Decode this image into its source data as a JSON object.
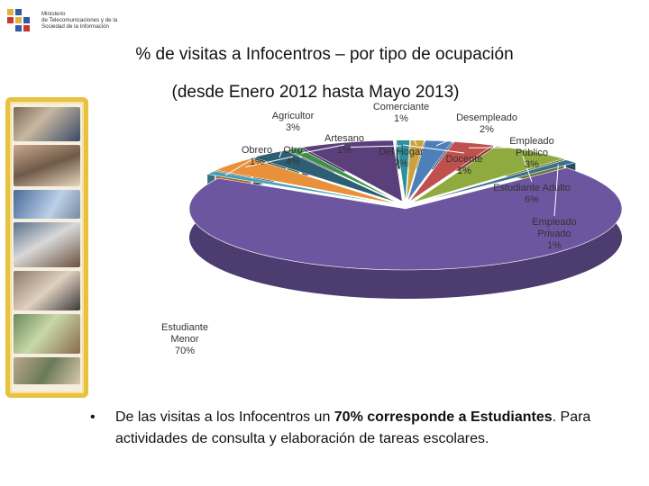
{
  "logo": {
    "lines": [
      "Ministerio",
      "de Telecomunicaciones y de la",
      "Sociedad de la Información"
    ]
  },
  "title": "% de visitas a Infocentros – por tipo de ocupación",
  "subtitle": "(desde Enero 2012 hasta Mayo 2013)",
  "chart_data": {
    "type": "pie",
    "style": "3d-exploded",
    "legend": "none (data labels around slices)",
    "slices": [
      {
        "name": "Comerciante",
        "label": "1%",
        "value": 1,
        "color": "#c9a23a"
      },
      {
        "name": "Desempleado",
        "label": "2%",
        "value": 2,
        "color": "#4f7fb8"
      },
      {
        "name": "Empleado Público",
        "label": "3%",
        "value": 3,
        "color": "#c0504d"
      },
      {
        "name": "Estudiante Adulto",
        "label": "6%",
        "value": 6,
        "color": "#8faa3e"
      },
      {
        "name": "Empleado Privado",
        "label": "1%",
        "value": 1,
        "color": "#3a6f8f"
      },
      {
        "name": "Estudiante Menor",
        "label": "70%",
        "value": 70,
        "color": "#6d56a0"
      },
      {
        "name": "Obrero",
        "label": "1%",
        "value": 1,
        "color": "#4aa0b8"
      },
      {
        "name": "Otro",
        "label": "4%",
        "value": 4,
        "color": "#e8913a"
      },
      {
        "name": "Agricultor",
        "label": "3%",
        "value": 3,
        "color": "#2c5f73"
      },
      {
        "name": "Artesano",
        "label": "1%",
        "value": 1,
        "color": "#3f8f4a"
      },
      {
        "name": "Del Hogar",
        "label": "7%",
        "value": 7,
        "color": "#5a3f7a"
      },
      {
        "name": "Docente",
        "label": "1%",
        "value": 1,
        "color": "#2f8f9a"
      }
    ]
  },
  "bullet": {
    "symbol": "•",
    "pre": "De las visitas a los Infocentros un ",
    "bold": "70% corresponde a Estudiantes",
    "post": ". Para actividades de consulta y elaboración de tareas escolares."
  }
}
